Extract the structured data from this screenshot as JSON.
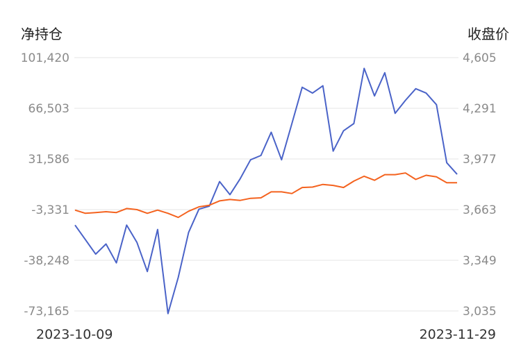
{
  "chart_data": {
    "type": "line",
    "left_axis_title": "净持仓",
    "right_axis_title": "收盘价",
    "left_ticks": [
      "101,420",
      "66,503",
      "31,586",
      "-3,331",
      "-38,248",
      "-73,165"
    ],
    "right_ticks": [
      "4,605",
      "4,291",
      "3,977",
      "3,663",
      "3,349",
      "3,035"
    ],
    "left_ylim": [
      -73165,
      101420
    ],
    "right_ylim": [
      3035,
      4605
    ],
    "x_start_label": "2023-10-09",
    "x_end_label": "2023-11-29",
    "grid": true,
    "colors": {
      "net_position": "#4a63c8",
      "close_price": "#f4621e",
      "grid": "#e6e6e6"
    },
    "series": [
      {
        "axis": "left",
        "color": "#4a63c8",
        "values": [
          -14000,
          -24000,
          -34000,
          -27000,
          -40000,
          -14000,
          -26000,
          -46000,
          -17000,
          -75000,
          -50000,
          -19000,
          -3000,
          -1000,
          16000,
          7000,
          18000,
          31000,
          34000,
          50000,
          31000,
          56000,
          81000,
          77000,
          82000,
          37000,
          51000,
          56000,
          94000,
          75000,
          91000,
          63000,
          72000,
          80000,
          77000,
          69000,
          29000,
          21000
        ]
      },
      {
        "axis": "right",
        "color": "#f4621e",
        "values": [
          3660,
          3640,
          3645,
          3650,
          3645,
          3670,
          3663,
          3640,
          3660,
          3640,
          3615,
          3653,
          3680,
          3690,
          3717,
          3726,
          3720,
          3733,
          3736,
          3773,
          3773,
          3763,
          3800,
          3803,
          3819,
          3813,
          3800,
          3840,
          3870,
          3845,
          3880,
          3880,
          3890,
          3850,
          3876,
          3866,
          3830,
          3830
        ]
      }
    ]
  }
}
